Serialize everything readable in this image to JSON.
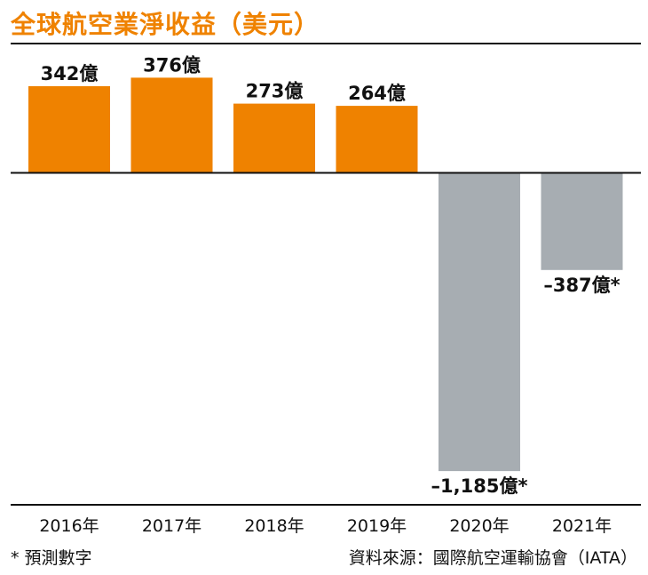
{
  "chart_data": {
    "type": "bar",
    "title": "全球航空業淨收益（美元）",
    "categories": [
      "2016年",
      "2017年",
      "2018年",
      "2019年",
      "2020年",
      "2021年"
    ],
    "values": [
      342,
      376,
      273,
      264,
      -1185,
      -387
    ],
    "data_labels": [
      "342億",
      "376億",
      "273億",
      "264億",
      "–1,185億*",
      "–387億*"
    ],
    "ylim": [
      -1250,
      400
    ],
    "grid": false,
    "colors": {
      "positive": "#ef8200",
      "negative": "#a7adb2"
    }
  },
  "footnote": "* 預測數字",
  "source": "資料來源：國際航空運輸協會（IATA）"
}
